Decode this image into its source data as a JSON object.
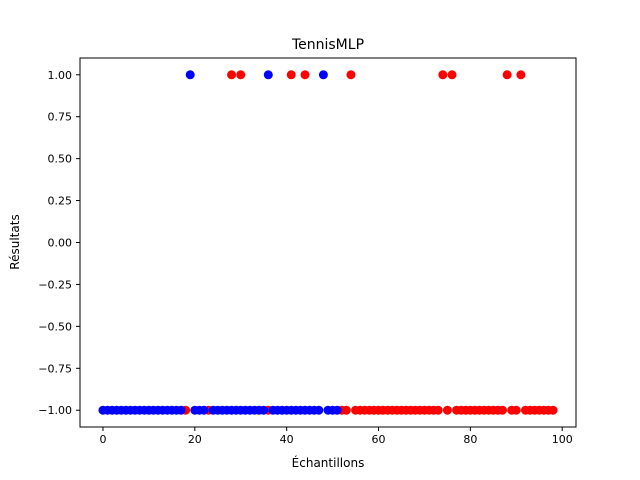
{
  "chart_data": {
    "type": "scatter",
    "title": "TennisMLP",
    "xlabel": "Échantillons",
    "ylabel": "Résultats",
    "xlim": [
      -5,
      103
    ],
    "ylim": [
      -1.1,
      1.1
    ],
    "grid": false,
    "legend": "none",
    "x_ticks": [
      0,
      20,
      40,
      60,
      80,
      100
    ],
    "y_ticks": [
      1.0,
      0.75,
      0.5,
      0.25,
      0.0,
      -0.25,
      -0.5,
      -0.75,
      -1.0
    ],
    "x_tick_labels": [
      "0",
      "20",
      "40",
      "60",
      "80",
      "100"
    ],
    "y_tick_labels": [
      "1.00",
      "0.75",
      "0.50",
      "0.25",
      "0.00",
      "−0.25",
      "−0.50",
      "−0.75",
      "−1.00"
    ],
    "series": [
      {
        "color": "#ff0000",
        "x": [
          28,
          30,
          41,
          44,
          54,
          74,
          76,
          88,
          91,
          18,
          23,
          36,
          52,
          53,
          55,
          56,
          57,
          58,
          59,
          60,
          61,
          62,
          63,
          64,
          65,
          66,
          67,
          68,
          69,
          70,
          71,
          72,
          73,
          75,
          77,
          78,
          79,
          80,
          81,
          82,
          83,
          84,
          85,
          86,
          87,
          89,
          90,
          92,
          93,
          94,
          95,
          96,
          97,
          98
        ],
        "y": [
          1,
          1,
          1,
          1,
          1,
          1,
          1,
          1,
          1,
          -1,
          -1,
          -1,
          -1,
          -1,
          -1,
          -1,
          -1,
          -1,
          -1,
          -1,
          -1,
          -1,
          -1,
          -1,
          -1,
          -1,
          -1,
          -1,
          -1,
          -1,
          -1,
          -1,
          -1,
          -1,
          -1,
          -1,
          -1,
          -1,
          -1,
          -1,
          -1,
          -1,
          -1,
          -1,
          -1,
          -1,
          -1,
          -1,
          -1,
          -1,
          -1,
          -1,
          -1,
          -1
        ]
      },
      {
        "color": "#0000ff",
        "x": [
          19,
          36,
          48,
          0,
          1,
          2,
          3,
          4,
          5,
          6,
          7,
          8,
          9,
          10,
          11,
          12,
          13,
          14,
          15,
          16,
          17,
          20,
          21,
          22,
          24,
          25,
          26,
          27,
          28,
          29,
          30,
          31,
          32,
          33,
          34,
          35,
          37,
          38,
          39,
          40,
          41,
          42,
          43,
          44,
          45,
          46,
          47,
          49,
          50,
          51
        ],
        "y": [
          1,
          1,
          1,
          -1,
          -1,
          -1,
          -1,
          -1,
          -1,
          -1,
          -1,
          -1,
          -1,
          -1,
          -1,
          -1,
          -1,
          -1,
          -1,
          -1,
          -1,
          -1,
          -1,
          -1,
          -1,
          -1,
          -1,
          -1,
          -1,
          -1,
          -1,
          -1,
          -1,
          -1,
          -1,
          -1,
          -1,
          -1,
          -1,
          -1,
          -1,
          -1,
          -1,
          -1,
          -1,
          -1,
          -1,
          -1,
          -1,
          -1
        ]
      }
    ]
  }
}
